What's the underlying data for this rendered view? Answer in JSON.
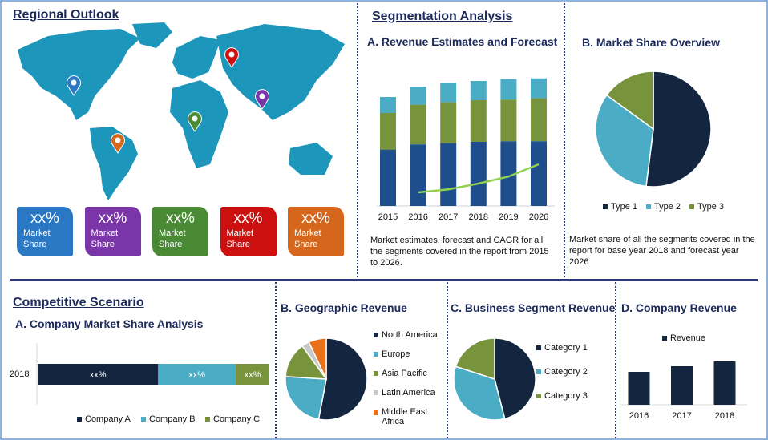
{
  "regional": {
    "title": "Regional Outlook",
    "cards": [
      {
        "value": "xx%",
        "label1": "Market",
        "label2": "Share",
        "color": "#2a77c4"
      },
      {
        "value": "xx%",
        "label1": "Market",
        "label2": "Share",
        "color": "#7a35a8"
      },
      {
        "value": "xx%",
        "label1": "Market",
        "label2": "Share",
        "color": "#4b8a34"
      },
      {
        "value": "xx%",
        "label1": "Market",
        "label2": "Share",
        "color": "#cc1010"
      },
      {
        "value": "xx%",
        "label1": "Market",
        "label2": "Share",
        "color": "#d6661c"
      }
    ],
    "map_color": "#1c97bb",
    "pins": [
      {
        "color": "#2a77c4"
      },
      {
        "color": "#cc1010"
      },
      {
        "color": "#7a35a8"
      },
      {
        "color": "#4b8a34"
      },
      {
        "color": "#d6661c"
      }
    ]
  },
  "segmentation": {
    "title": "Segmentation Analysis"
  },
  "competitive": {
    "title": "Competitive Scenario"
  },
  "chart_data": [
    {
      "type": "bar",
      "title": "A. Revenue Estimates and Forecast",
      "stacked": true,
      "categories": [
        "2015",
        "2016",
        "2017",
        "2018",
        "2019",
        "2026"
      ],
      "series": [
        {
          "values": [
            44,
            48,
            49,
            50,
            50.5,
            50.5
          ],
          "color": "#1f4e8c"
        },
        {
          "values": [
            28.5,
            31,
            32,
            32.5,
            32.5,
            33.5
          ],
          "color": "#77933c"
        },
        {
          "values": [
            12.5,
            14,
            15,
            15,
            16,
            15.5
          ],
          "color": "#4bacc6"
        }
      ],
      "line": {
        "categories": [
          "2016",
          "2017",
          "2018",
          "2019",
          "2026"
        ],
        "values": [
          10.6,
          13,
          17.5,
          23,
          32.5
        ],
        "color": "#92d050"
      },
      "ylim": [
        0,
        100
      ],
      "description": "Market estimates, forecast and CAGR for all the segments covered in the report from 2015 to 2026."
    },
    {
      "type": "pie",
      "title": "B. Market Share Overview",
      "labels": [
        "Type 1",
        "Type 2",
        "Type 3"
      ],
      "values": [
        52,
        33,
        15
      ],
      "colors": [
        "#13253f",
        "#4bacc6",
        "#77933c"
      ],
      "legend": "bottom",
      "description": "Market share of all the segments covered in the report for base year 2018 and forecast year 2026"
    },
    {
      "type": "bar",
      "orientation": "horizontal",
      "stacked": true,
      "title": "A. Company Market Share Analysis",
      "categories": [
        "2018"
      ],
      "series": [
        {
          "name": "Company  A",
          "values": [
            52
          ],
          "label": "xx%",
          "color": "#13253f"
        },
        {
          "name": "Company B",
          "values": [
            33.5
          ],
          "label": "xx%",
          "color": "#4bacc6"
        },
        {
          "name": "Company C",
          "values": [
            14.5
          ],
          "label": "xx%",
          "color": "#77933c"
        }
      ],
      "legend": "bottom"
    },
    {
      "type": "pie",
      "title": "B. Geographic Revenue",
      "labels": [
        "North America",
        "Europe",
        "Asia Pacific",
        "Latin America",
        "Middle East Africa"
      ],
      "values": [
        53,
        23,
        14,
        3,
        7
      ],
      "colors": [
        "#13253f",
        "#4bacc6",
        "#77933c",
        "#c8c8c8",
        "#e8711a"
      ],
      "legend": "right"
    },
    {
      "type": "pie",
      "title": "C. Business Segment Revenue",
      "labels": [
        "Category 1",
        "Category 2",
        "Category 3"
      ],
      "values": [
        46,
        34,
        20
      ],
      "colors": [
        "#13253f",
        "#4bacc6",
        "#77933c"
      ],
      "legend": "right"
    },
    {
      "type": "bar",
      "title": "D. Company Revenue",
      "categories": [
        "2016",
        "2017",
        "2018"
      ],
      "series": [
        {
          "name": "Revenue",
          "values": [
            41,
            48,
            54
          ],
          "color": "#13253f"
        }
      ],
      "ylim": [
        0,
        70
      ],
      "legend": "top"
    }
  ]
}
